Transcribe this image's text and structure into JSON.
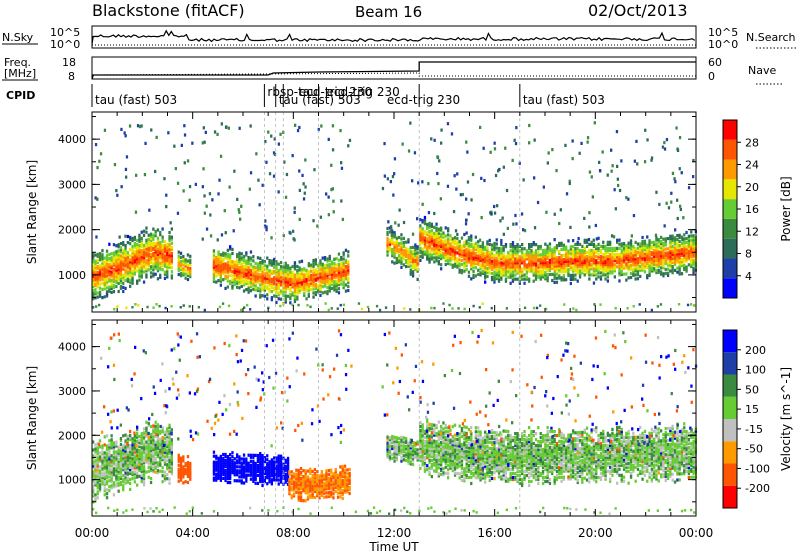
{
  "header": {
    "station": "Blackstone (fitACF)",
    "beam": "Beam 16",
    "date": "02/Oct/2013"
  },
  "colors": {
    "power_scale": [
      "#0000ff",
      "#1f3fa8",
      "#2e6c5a",
      "#3a8a40",
      "#66cc33",
      "#e6e600",
      "#ff9900",
      "#ff5500",
      "#ff0000"
    ],
    "velocity_scale": [
      "#ff0000",
      "#ff5500",
      "#ff9900",
      "#c0c0c0",
      "#66cc33",
      "#3a8a40",
      "#1f3fa8",
      "#0000ff"
    ]
  },
  "noise_panel": {
    "left_label": "N.Sky",
    "right_label": "N.Search",
    "left_ticks": [
      "10^5",
      "10^0"
    ],
    "right_ticks": [
      "10^5",
      "10^0"
    ]
  },
  "freq_panel": {
    "left_label_1": "Freq.",
    "left_label_2": "[MHz]",
    "right_label": "Nave",
    "left_ticks": [
      "18",
      "8"
    ],
    "right_ticks": [
      "60",
      "0"
    ]
  },
  "cpid": {
    "label": "CPID",
    "segments": [
      {
        "text": "tau (fast) 503",
        "hour": 0.0
      },
      {
        "text": "rbsp-tau",
        "hour": 6.85
      },
      {
        "text": "tau (fast) 503",
        "hour": 7.3
      },
      {
        "text": "ecd-trig 230",
        "hour": 8.1
      },
      {
        "text": "ecd-trig 230",
        "hour": 9.2
      },
      {
        "text": "ecd-trig 230",
        "hour": 11.6
      },
      {
        "text": "tau (fast) 503",
        "hour": 17.0
      }
    ],
    "change_hours": [
      6.85,
      7.3,
      7.6,
      9.0,
      13.0,
      17.0
    ]
  },
  "chart_data": [
    {
      "type": "heatmap",
      "parameter": "Power",
      "ylabel": "Slant Range [km]",
      "ylim": [
        180,
        4600
      ],
      "xlim_hours": [
        0,
        24
      ],
      "yticks": [
        1000,
        2000,
        3000,
        4000
      ],
      "colorbar": {
        "label": "Power [dB]",
        "ticks": [
          "4",
          "8",
          "12",
          "16",
          "20",
          "24",
          "28"
        ],
        "range": [
          0,
          32
        ]
      },
      "echo_bands": [
        {
          "start": 0.0,
          "end": 3.2,
          "center": [
            1000,
            1150,
            1350,
            1550,
            1450
          ],
          "width": 550,
          "peak": 28
        },
        {
          "start": 3.4,
          "end": 3.9,
          "center": [
            1300,
            1150
          ],
          "width": 300,
          "peak": 24
        },
        {
          "start": 4.8,
          "end": 10.2,
          "center": [
            1250,
            1100,
            950,
            850,
            1000,
            1150
          ],
          "width": 450,
          "peak": 28
        },
        {
          "start": 11.7,
          "end": 12.9,
          "center": [
            1750,
            1550,
            1300
          ],
          "width": 350,
          "peak": 26
        },
        {
          "start": 13.0,
          "end": 24.0,
          "center": [
            1850,
            1500,
            1300,
            1300,
            1350,
            1350,
            1450,
            1550
          ],
          "width": 450,
          "peak": 28
        }
      ]
    },
    {
      "type": "heatmap",
      "parameter": "Velocity",
      "ylabel": "Slant Range [km]",
      "ylim": [
        180,
        4600
      ],
      "xlim_hours": [
        0,
        24
      ],
      "yticks": [
        1000,
        2000,
        3000,
        4000
      ],
      "colorbar": {
        "label": "Velocity [m s^-1]",
        "ticks": [
          "-200",
          "-100",
          "-50",
          "-15",
          "15",
          "50",
          "100",
          "200"
        ],
        "range": [
          -250,
          250
        ]
      },
      "echo_bands": [
        {
          "start": 0.0,
          "end": 3.2,
          "center": [
            1200,
            1400,
            1550,
            1700,
            1600
          ],
          "width": 650,
          "velocity": 0
        },
        {
          "start": 3.4,
          "end": 3.9,
          "center": [
            1300,
            1200
          ],
          "width": 300,
          "velocity": -150
        },
        {
          "start": 4.8,
          "end": 7.8,
          "center": [
            1300,
            1250
          ],
          "width": 350,
          "velocity": 180
        },
        {
          "start": 7.8,
          "end": 10.2,
          "center": [
            950,
            900,
            1000
          ],
          "width": 350,
          "velocity": -100
        },
        {
          "start": 11.7,
          "end": 12.9,
          "center": [
            1800,
            1600
          ],
          "width": 300,
          "velocity": 0
        },
        {
          "start": 13.0,
          "end": 24.0,
          "center": [
            1800,
            1600,
            1550,
            1550,
            1600,
            1600,
            1650
          ],
          "width": 600,
          "velocity": 0
        }
      ]
    }
  ],
  "xaxis": {
    "label": "Time UT",
    "ticks": [
      "00:00",
      "04:00",
      "08:00",
      "12:00",
      "16:00",
      "20:00",
      "00:00"
    ]
  }
}
